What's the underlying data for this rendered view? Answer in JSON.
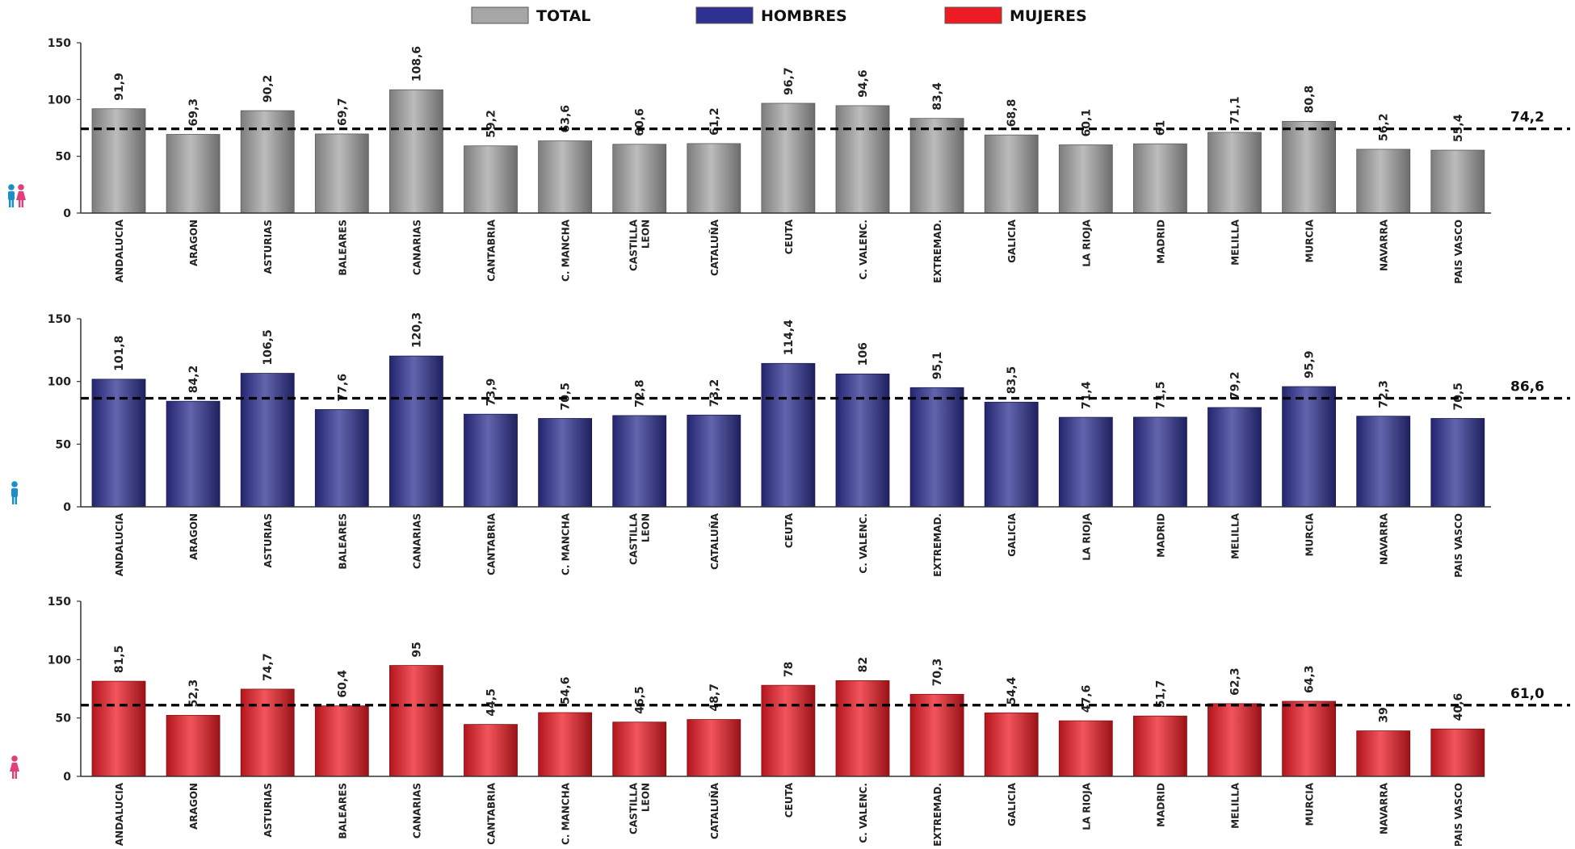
{
  "legend": [
    {
      "label": "TOTAL",
      "color": "#a6a6a6"
    },
    {
      "label": "HOMBRES",
      "color": "#2e3192"
    },
    {
      "label": "MUJERES",
      "color": "#ed1c24"
    }
  ],
  "chart_data": [
    {
      "type": "bar",
      "series_label": "TOTAL",
      "color": "#a6a6a6",
      "icon": "people-icon",
      "categories": [
        "ANDALUCIA",
        "ARAGON",
        "ASTURIAS",
        "BALEARES",
        "CANARIAS",
        "CANTABRIA",
        "C. MANCHA",
        "CASTILLA LEON",
        "CATALUÑA",
        "CEUTA",
        "C. VALENC.",
        "EXTREMAD.",
        "GALICIA",
        "LA RIOJA",
        "MADRID",
        "MELILLA",
        "MURCIA",
        "NAVARRA",
        "PAIS VASCO"
      ],
      "values": [
        91.9,
        69.3,
        90.2,
        69.7,
        108.6,
        59.2,
        63.6,
        60.6,
        61.2,
        96.7,
        94.6,
        83.4,
        68.8,
        60.1,
        61,
        71.1,
        80.8,
        56.2,
        55.4
      ],
      "value_labels": [
        "91,9",
        "69,3",
        "90,2",
        "69,7",
        "108,6",
        "59,2",
        "63,6",
        "60,6",
        "61,2",
        "96,7",
        "94,6",
        "83,4",
        "68,8",
        "60,1",
        "61",
        "71,1",
        "80,8",
        "56,2",
        "55,4"
      ],
      "ylim": [
        0,
        150
      ],
      "yticks": [
        0,
        50,
        100,
        150
      ],
      "reference_line": {
        "value": 74.2,
        "label": "74,2"
      }
    },
    {
      "type": "bar",
      "series_label": "HOMBRES",
      "color": "#2e3192",
      "icon": "man-icon",
      "categories": [
        "ANDALUCIA",
        "ARAGON",
        "ASTURIAS",
        "BALEARES",
        "CANARIAS",
        "CANTABRIA",
        "C. MANCHA",
        "CASTILLA LEON",
        "CATALUÑA",
        "CEUTA",
        "C. VALENC.",
        "EXTREMAD.",
        "GALICIA",
        "LA RIOJA",
        "MADRID",
        "MELILLA",
        "MURCIA",
        "NAVARRA",
        "PAIS VASCO"
      ],
      "values": [
        101.8,
        84.2,
        106.5,
        77.6,
        120.3,
        73.9,
        70.5,
        72.8,
        73.2,
        114.4,
        106,
        95.1,
        83.5,
        71.4,
        71.5,
        79.2,
        95.9,
        72.3,
        70.5
      ],
      "value_labels": [
        "101,8",
        "84,2",
        "106,5",
        "77,6",
        "120,3",
        "73,9",
        "70,5",
        "72,8",
        "73,2",
        "114,4",
        "106",
        "95,1",
        "83,5",
        "71,4",
        "71,5",
        "79,2",
        "95,9",
        "72,3",
        "70,5"
      ],
      "ylim": [
        0,
        150
      ],
      "yticks": [
        0,
        50,
        100,
        150
      ],
      "reference_line": {
        "value": 86.6,
        "label": "86,6"
      }
    },
    {
      "type": "bar",
      "series_label": "MUJERES",
      "color": "#ed1c24",
      "icon": "woman-icon",
      "categories": [
        "ANDALUCIA",
        "ARAGON",
        "ASTURIAS",
        "BALEARES",
        "CANARIAS",
        "CANTABRIA",
        "C. MANCHA",
        "CASTILLA LEON",
        "CATALUÑA",
        "CEUTA",
        "C. VALENC.",
        "EXTREMAD.",
        "GALICIA",
        "LA RIOJA",
        "MADRID",
        "MELILLA",
        "MURCIA",
        "NAVARRA",
        "PAIS VASCO"
      ],
      "values": [
        81.5,
        52.3,
        74.7,
        60.4,
        95,
        44.5,
        54.6,
        46.5,
        48.7,
        78,
        82,
        70.3,
        54.4,
        47.6,
        51.7,
        62.3,
        64.3,
        39,
        40.6
      ],
      "value_labels": [
        "81,5",
        "52,3",
        "74,7",
        "60,4",
        "95",
        "44,5",
        "54,6",
        "46,5",
        "48,7",
        "78",
        "82",
        "70,3",
        "54,4",
        "47,6",
        "51,7",
        "62,3",
        "64,3",
        "39",
        "40,6"
      ],
      "ylim": [
        0,
        150
      ],
      "yticks": [
        0,
        50,
        100,
        150
      ],
      "reference_line": {
        "value": 61.0,
        "label": "61,0"
      }
    }
  ]
}
